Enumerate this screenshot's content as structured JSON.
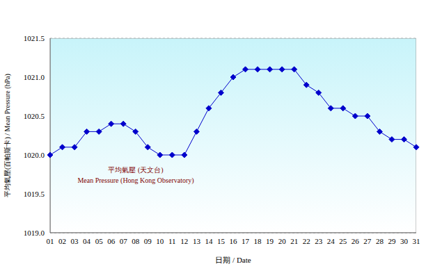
{
  "chart_data": {
    "type": "line",
    "x_label": "日期 / Date",
    "y_label": "平均氣壓(百帕斯卡) / Mean Pressure (hPa)",
    "annotations": [
      "平均氣壓 (天文台)",
      "Mean Pressure (Hong Kong Observatory)"
    ],
    "categories": [
      "01",
      "02",
      "03",
      "04",
      "05",
      "06",
      "07",
      "08",
      "09",
      "10",
      "11",
      "12",
      "13",
      "14",
      "15",
      "16",
      "17",
      "18",
      "19",
      "20",
      "21",
      "22",
      "23",
      "24",
      "25",
      "26",
      "27",
      "28",
      "29",
      "30",
      "31"
    ],
    "values": [
      1020.0,
      1020.1,
      1020.1,
      1020.3,
      1020.3,
      1020.4,
      1020.4,
      1020.3,
      1020.1,
      1020.0,
      1020.0,
      1020.0,
      1020.3,
      1020.6,
      1020.8,
      1021.0,
      1021.1,
      1021.1,
      1021.1,
      1021.1,
      1021.1,
      1020.9,
      1020.8,
      1020.6,
      1020.6,
      1020.5,
      1020.5,
      1020.3,
      1020.2,
      1020.2,
      1020.1
    ],
    "color": "#0000cc",
    "marker": "diamond",
    "ylim": [
      1019.0,
      1021.5
    ],
    "yticks": [
      {
        "value": 1019.0,
        "label": "1019.0"
      },
      {
        "value": 1019.5,
        "label": "1019.5"
      },
      {
        "value": 1020.0,
        "label": "1020.0"
      },
      {
        "value": 1020.5,
        "label": "1020.5"
      },
      {
        "value": 1021.0,
        "label": "1021.0"
      },
      {
        "value": 1021.5,
        "label": "1021.5"
      }
    ],
    "grid": true
  }
}
